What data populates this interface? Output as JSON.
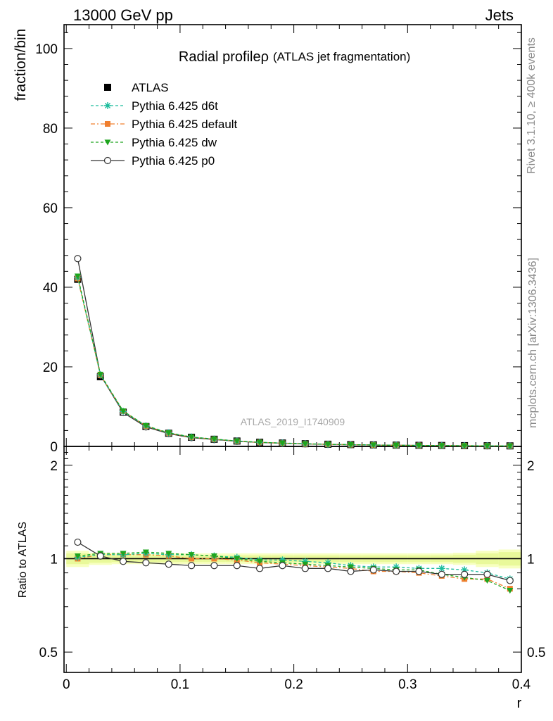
{
  "header": {
    "left": "13000 GeV pp",
    "right": "Jets"
  },
  "side_labels": {
    "rivet": "Rivet 3.1.10, ≥ 400k events",
    "mcplots": "mcplots.cern.ch [arXiv:1306.3436]"
  },
  "watermark": "ATLAS_2019_I1740909",
  "colors": {
    "ATLAS": "#000000",
    "d6t": "#1abc9c",
    "default": "#f07f2e",
    "dw": "#1ea51e",
    "p0": "#333333",
    "band_inner": "#e9f99a",
    "band_outer": "#f7ffc0"
  },
  "chart_data": {
    "type": "line",
    "title": "Radial profileρ",
    "title_suffix": "(ATLAS jet fragmentation)",
    "xlabel": "r",
    "ylabel": "fraction/bin",
    "ratio_ylabel": "Ratio to ATLAS",
    "xlim": [
      -0.002,
      0.4
    ],
    "ylim": [
      0,
      106
    ],
    "ratio_ylim": [
      0.43,
      2.3
    ],
    "x_ticks": [
      "0",
      "0.1",
      "0.2",
      "0.3",
      "0.4"
    ],
    "y_ticks": [
      "0",
      "20",
      "40",
      "60",
      "80",
      "100"
    ],
    "ratio_ticks": [
      "0.5",
      "1",
      "2"
    ],
    "legend_position": "top-left",
    "x": [
      0.01,
      0.03,
      0.05,
      0.07,
      0.09,
      0.11,
      0.13,
      0.15,
      0.17,
      0.19,
      0.21,
      0.23,
      0.25,
      0.27,
      0.29,
      0.31,
      0.33,
      0.35,
      0.37,
      0.39
    ],
    "series": [
      {
        "name": "ATLAS",
        "key": "ATLAS",
        "values": [
          42.0,
          17.5,
          8.6,
          5.0,
          3.3,
          2.3,
          1.8,
          1.35,
          1.05,
          0.85,
          0.68,
          0.55,
          0.46,
          0.38,
          0.32,
          0.27,
          0.23,
          0.19,
          0.16,
          0.13
        ]
      },
      {
        "name": "Pythia 6.425 d6t",
        "key": "d6t",
        "values": [
          42.5,
          18.0,
          8.8,
          5.15,
          3.4,
          2.36,
          1.84,
          1.36,
          1.03,
          0.84,
          0.66,
          0.53,
          0.44,
          0.36,
          0.3,
          0.25,
          0.21,
          0.17,
          0.145,
          0.11
        ],
        "ratio": [
          1.01,
          1.03,
          1.03,
          1.04,
          1.03,
          1.03,
          1.02,
          1.01,
          0.99,
          0.99,
          0.98,
          0.97,
          0.95,
          0.94,
          0.94,
          0.93,
          0.93,
          0.92,
          0.9,
          0.86
        ]
      },
      {
        "name": "Pythia 6.425 default",
        "key": "default",
        "values": [
          42.2,
          17.9,
          8.85,
          5.1,
          3.35,
          2.3,
          1.82,
          1.33,
          1.01,
          0.82,
          0.64,
          0.52,
          0.43,
          0.35,
          0.29,
          0.245,
          0.205,
          0.165,
          0.138,
          0.105
        ],
        "ratio": [
          1.0,
          1.03,
          1.03,
          1.03,
          1.02,
          1.0,
          1.0,
          0.99,
          0.97,
          0.96,
          0.95,
          0.94,
          0.93,
          0.91,
          0.91,
          0.9,
          0.88,
          0.86,
          0.86,
          0.8
        ]
      },
      {
        "name": "Pythia 6.425 dw",
        "key": "dw",
        "values": [
          42.8,
          18.1,
          8.9,
          5.2,
          3.42,
          2.37,
          1.83,
          1.36,
          1.03,
          0.83,
          0.65,
          0.52,
          0.43,
          0.355,
          0.295,
          0.25,
          0.205,
          0.17,
          0.14,
          0.1
        ],
        "ratio": [
          1.02,
          1.04,
          1.04,
          1.05,
          1.04,
          1.03,
          1.02,
          1.0,
          0.98,
          0.97,
          0.96,
          0.95,
          0.94,
          0.93,
          0.92,
          0.92,
          0.89,
          0.87,
          0.85,
          0.79
        ]
      },
      {
        "name": "Pythia 6.425 p0",
        "key": "p0",
        "values": [
          47.2,
          17.9,
          8.5,
          4.9,
          3.2,
          2.2,
          1.73,
          1.28,
          0.98,
          0.8,
          0.63,
          0.51,
          0.42,
          0.35,
          0.29,
          0.245,
          0.205,
          0.17,
          0.142,
          0.11
        ],
        "ratio": [
          1.13,
          1.02,
          0.98,
          0.97,
          0.96,
          0.95,
          0.95,
          0.95,
          0.93,
          0.95,
          0.93,
          0.93,
          0.91,
          0.92,
          0.91,
          0.91,
          0.89,
          0.89,
          0.89,
          0.85
        ]
      }
    ],
    "uncertainty_band": {
      "inner": [
        0.04,
        0.03,
        0.025,
        0.025,
        0.025,
        0.025,
        0.025,
        0.025,
        0.025,
        0.025,
        0.025,
        0.025,
        0.025,
        0.025,
        0.025,
        0.025,
        0.025,
        0.03,
        0.04,
        0.05
      ],
      "outer": [
        0.06,
        0.045,
        0.04,
        0.04,
        0.04,
        0.04,
        0.04,
        0.04,
        0.04,
        0.04,
        0.04,
        0.04,
        0.04,
        0.04,
        0.04,
        0.04,
        0.04,
        0.045,
        0.06,
        0.07
      ]
    }
  }
}
